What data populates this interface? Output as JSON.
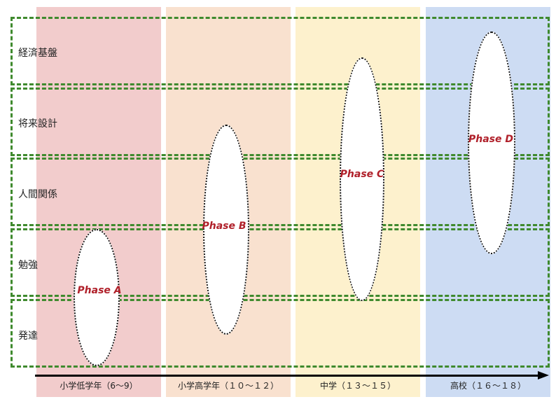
{
  "rows": [
    {
      "label": "経済基盤"
    },
    {
      "label": "将来設計"
    },
    {
      "label": "人間関係"
    },
    {
      "label": "勉強"
    },
    {
      "label": "発達"
    }
  ],
  "columns": [
    {
      "label": "小学低学年（6〜9）",
      "color": "#f2cccc"
    },
    {
      "label": "小学高学年（１０〜１２）",
      "color": "#f9e1cf"
    },
    {
      "label": "中学（１３〜１５）",
      "color": "#fdf1cd"
    },
    {
      "label": "高校（１６〜１８）",
      "color": "#cddcf3"
    }
  ],
  "phases": [
    {
      "label": "Phase A"
    },
    {
      "label": "Phase B"
    },
    {
      "label": "Phase C"
    },
    {
      "label": "Phase D"
    }
  ],
  "colors": {
    "row_border": "#3f8a2e",
    "phase_text": "#b0202a",
    "axis": "#000000"
  }
}
